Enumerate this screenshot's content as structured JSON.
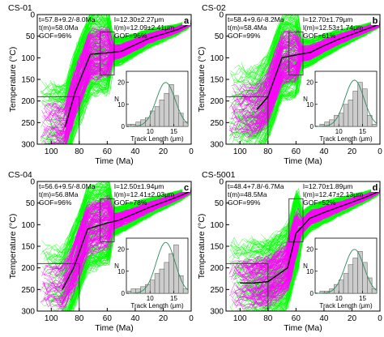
{
  "colors": {
    "good_path": "#ff00ff",
    "acceptable_path": "#00ff00",
    "best_fit": "#000000",
    "constraint_box": "#333333",
    "histogram_bar": "#cccccc",
    "histogram_curve": "#2e8b57"
  },
  "shared_axes": {
    "ylabel": "Temperature (°C)",
    "xlabel": "Time (Ma)",
    "x_ticks": [
      "100",
      "80",
      "60",
      "40",
      "20",
      "0"
    ],
    "y_ticks": [
      "0",
      "50",
      "100",
      "150",
      "200",
      "250",
      "300"
    ]
  },
  "chart_data": [
    {
      "type": "line",
      "panel_letter": "a",
      "sample": "CS-01",
      "stats": {
        "t": "t=57.8+9.2/-8.0Ma",
        "tm": "t(m)=58.0Ma",
        "gof_age": "GOF=96%",
        "l": "l=12.30±2.27μm",
        "lm": "l(m)=12.09±2.41μm",
        "gof_len": "GOF=96%"
      },
      "xlim": [
        110,
        0
      ],
      "ylim": [
        300,
        0
      ],
      "best_fit": {
        "x": [
          90,
          83,
          72,
          58,
          50,
          40,
          30,
          20,
          10,
          0
        ],
        "y": [
          260,
          180,
          92,
          88,
          85,
          70,
          55,
          45,
          35,
          20
        ]
      },
      "constraint_boxes": [
        {
          "t": [
            110,
            80
          ],
          "temp": [
            190,
            300
          ]
        },
        {
          "t": [
            65,
            55
          ],
          "temp": [
            40,
            140
          ]
        }
      ],
      "histogram": {
        "xlabel": "Track Length (μm)",
        "ylabel": "N",
        "x_ticks": [
          "10",
          "15"
        ],
        "y_ticks": [
          "0",
          "10",
          "20"
        ],
        "bins": [
          5,
          6,
          7,
          8,
          9,
          10,
          11,
          12,
          13,
          14,
          15,
          16,
          17
        ],
        "counts": [
          1,
          1,
          2,
          3,
          4,
          7,
          9,
          12,
          15,
          19,
          14,
          6,
          2
        ]
      }
    },
    {
      "type": "line",
      "panel_letter": "b",
      "sample": "CS-02",
      "stats": {
        "t": "t=58.4+9.6/-8.2Ma",
        "tm": "t(m)=58.4Ma",
        "gof_age": "GOF=99%",
        "l": "l=12.70±1.79μm",
        "lm": "l(m)=12.53±1.74μm",
        "gof_len": "GOF=61%"
      },
      "xlim": [
        110,
        0
      ],
      "ylim": [
        300,
        0
      ],
      "best_fit": {
        "x": [
          88,
          80,
          70,
          58,
          50,
          40,
          30,
          20,
          10,
          0
        ],
        "y": [
          220,
          190,
          100,
          92,
          88,
          72,
          58,
          46,
          34,
          22
        ]
      },
      "constraint_boxes": [
        {
          "t": [
            110,
            80
          ],
          "temp": [
            190,
            300
          ]
        },
        {
          "t": [
            65,
            55
          ],
          "temp": [
            40,
            140
          ]
        }
      ],
      "histogram": {
        "xlabel": "Track Length (μm)",
        "ylabel": "N",
        "x_ticks": [
          "10",
          "15"
        ],
        "y_ticks": [
          "0",
          "10",
          "20"
        ],
        "bins": [
          5,
          6,
          7,
          8,
          9,
          10,
          11,
          12,
          13,
          14,
          15,
          16,
          17
        ],
        "counts": [
          0,
          1,
          2,
          3,
          5,
          6,
          10,
          12,
          16,
          20,
          17,
          5,
          1
        ]
      }
    },
    {
      "type": "line",
      "panel_letter": "c",
      "sample": "CS-04",
      "stats": {
        "t": "t=56.6+9.5/-8.0Ma",
        "tm": "t(m)=56.8Ma",
        "gof_age": "GOF=96%",
        "l": "l=12.50±1.94μm",
        "lm": "l(m)=12.41±2.03μm",
        "gof_len": "GOF=78%"
      },
      "xlim": [
        110,
        0
      ],
      "ylim": [
        300,
        0
      ],
      "best_fit": {
        "x": [
          92,
          84,
          74,
          60,
          52,
          40,
          30,
          20,
          10,
          0
        ],
        "y": [
          250,
          200,
          110,
          96,
          90,
          74,
          60,
          48,
          36,
          22
        ]
      },
      "constraint_boxes": [
        {
          "t": [
            110,
            80
          ],
          "temp": [
            190,
            300
          ]
        },
        {
          "t": [
            65,
            55
          ],
          "temp": [
            40,
            140
          ]
        }
      ],
      "histogram": {
        "xlabel": "Track Length (μm)",
        "ylabel": "N",
        "x_ticks": [
          "10",
          "15"
        ],
        "y_ticks": [
          "0",
          "10",
          "20"
        ],
        "bins": [
          5,
          6,
          7,
          8,
          9,
          10,
          11,
          12,
          13,
          14,
          15,
          16,
          17
        ],
        "counts": [
          1,
          2,
          2,
          3,
          4,
          6,
          9,
          11,
          14,
          18,
          22,
          8,
          2
        ]
      }
    },
    {
      "type": "line",
      "panel_letter": "d",
      "sample": "CS-5001",
      "stats": {
        "t": "t=48.4+7.8/-6.7Ma",
        "tm": "t(m)=48.5Ma",
        "gof_age": "GOF=99%",
        "l": "l=12.70±1.89μm",
        "lm": "l(m)=12.47±2.13μm",
        "gof_len": "GOF=52%"
      },
      "xlim": [
        110,
        0
      ],
      "ylim": [
        300,
        0
      ],
      "best_fit": {
        "x": [
          100,
          90,
          80,
          66,
          60,
          50,
          40,
          30,
          20,
          10,
          0
        ],
        "y": [
          235,
          235,
          232,
          200,
          120,
          85,
          72,
          60,
          48,
          36,
          22
        ]
      },
      "constraint_boxes": [
        {
          "t": [
            110,
            80
          ],
          "temp": [
            190,
            300
          ]
        },
        {
          "t": [
            65,
            55
          ],
          "temp": [
            40,
            140
          ]
        }
      ],
      "histogram": {
        "xlabel": "Track Length (μm)",
        "ylabel": "N",
        "x_ticks": [
          "10",
          "15"
        ],
        "y_ticks": [
          "0",
          "10",
          "20"
        ],
        "bins": [
          5,
          6,
          7,
          8,
          9,
          10,
          11,
          12,
          13,
          14,
          15,
          16,
          17
        ],
        "counts": [
          0,
          1,
          1,
          2,
          4,
          6,
          9,
          13,
          16,
          19,
          14,
          7,
          2
        ]
      }
    }
  ]
}
